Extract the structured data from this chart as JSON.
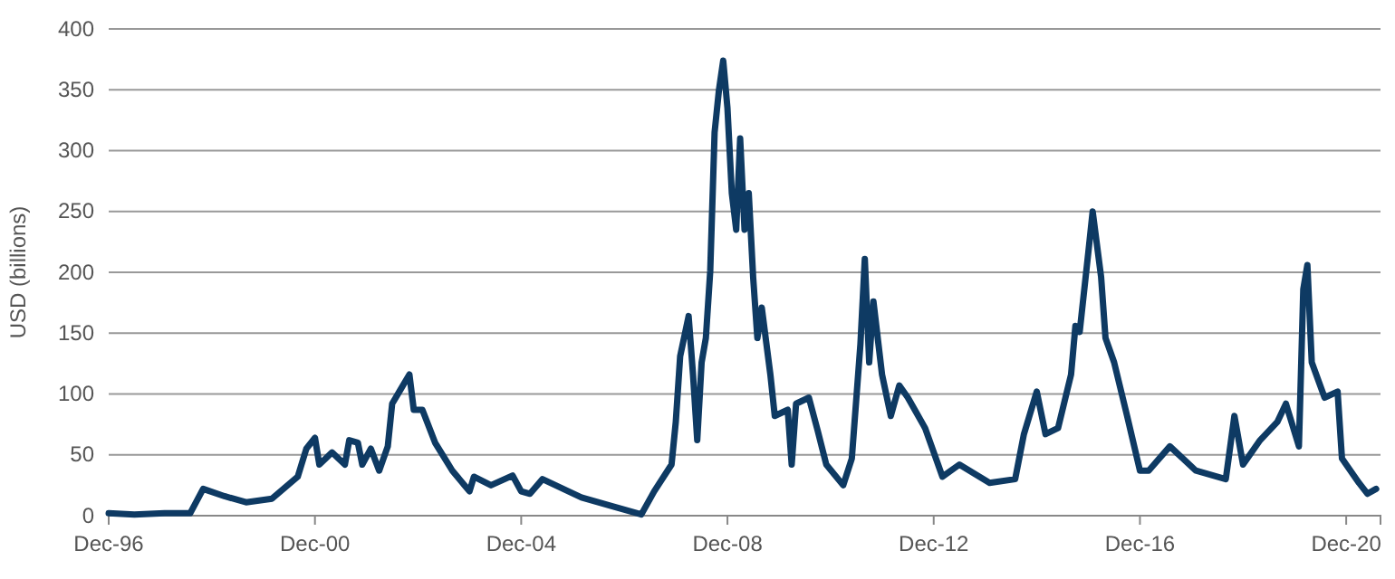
{
  "chart_data": {
    "type": "line",
    "ylabel": "USD (billions)",
    "xlim": [
      "1996-12",
      "2021-08"
    ],
    "ylim": [
      0,
      400
    ],
    "yticks": [
      0,
      50,
      100,
      150,
      200,
      250,
      300,
      350,
      400
    ],
    "xticks": [
      {
        "value": "1996-12",
        "label": "Dec-96"
      },
      {
        "value": "2000-12",
        "label": "Dec-00"
      },
      {
        "value": "2004-12",
        "label": "Dec-04"
      },
      {
        "value": "2008-12",
        "label": "Dec-08"
      },
      {
        "value": "2012-12",
        "label": "Dec-12"
      },
      {
        "value": "2016-12",
        "label": "Dec-16"
      },
      {
        "value": "2020-12",
        "label": "Dec-20"
      }
    ],
    "grid": "y",
    "marker": "none",
    "line_style": "solid",
    "x": [
      "1996-12",
      "1997-06",
      "1998-01",
      "1998-07",
      "1998-10",
      "1999-03",
      "1999-08",
      "2000-02",
      "2000-08",
      "2000-10",
      "2000-12",
      "2001-01",
      "2001-04",
      "2001-07",
      "2001-08",
      "2001-10",
      "2001-11",
      "2002-01",
      "2002-03",
      "2002-05",
      "2002-06",
      "2002-08",
      "2002-10",
      "2002-11",
      "2003-01",
      "2003-04",
      "2003-08",
      "2003-12",
      "2004-01",
      "2004-05",
      "2004-10",
      "2004-12",
      "2005-02",
      "2005-05",
      "2006-02",
      "2006-10",
      "2007-04",
      "2007-07",
      "2007-11",
      "2007-12",
      "2008-01",
      "2008-03",
      "2008-04",
      "2008-05",
      "2008-06",
      "2008-07",
      "2008-08",
      "2008-09",
      "2008-10",
      "2008-11",
      "2008-12",
      "2009-01",
      "2009-02",
      "2009-03",
      "2009-04",
      "2009-05",
      "2009-06",
      "2009-07",
      "2009-08",
      "2009-10",
      "2009-11",
      "2010-02",
      "2010-03",
      "2010-04",
      "2010-07",
      "2010-09",
      "2010-11",
      "2011-03",
      "2011-05",
      "2011-07",
      "2011-08",
      "2011-09",
      "2011-10",
      "2011-12",
      "2012-02",
      "2012-04",
      "2012-06",
      "2012-10",
      "2013-02",
      "2013-06",
      "2014-01",
      "2014-07",
      "2014-09",
      "2014-12",
      "2015-02",
      "2015-05",
      "2015-08",
      "2015-09",
      "2015-10",
      "2015-12",
      "2016-01",
      "2016-03",
      "2016-04",
      "2016-06",
      "2016-09",
      "2016-12",
      "2017-02",
      "2017-07",
      "2018-01",
      "2018-08",
      "2018-10",
      "2018-12",
      "2019-04",
      "2019-08",
      "2019-10",
      "2020-01",
      "2020-02",
      "2020-03",
      "2020-04",
      "2020-07",
      "2020-10",
      "2020-11",
      "2021-03",
      "2021-05",
      "2021-07"
    ],
    "series": [
      {
        "color": "#0e3a63",
        "values": [
          2,
          1,
          2,
          2,
          22,
          16,
          11,
          14,
          32,
          55,
          64,
          42,
          52,
          42,
          62,
          60,
          42,
          55,
          37,
          57,
          92,
          104,
          116,
          87,
          87,
          60,
          37,
          20,
          32,
          25,
          33,
          20,
          18,
          30,
          15,
          7,
          1,
          20,
          42,
          77,
          131,
          164,
          116,
          62,
          126,
          146,
          201,
          315,
          349,
          374,
          335,
          265,
          235,
          310,
          235,
          265,
          196,
          146,
          171,
          116,
          82,
          87,
          42,
          92,
          97,
          70,
          42,
          25,
          47,
          141,
          211,
          126,
          176,
          116,
          82,
          107,
          97,
          72,
          32,
          42,
          27,
          30,
          67,
          102,
          67,
          72,
          116,
          156,
          151,
          216,
          250,
          196,
          146,
          126,
          82,
          37,
          37,
          57,
          37,
          30,
          82,
          42,
          62,
          77,
          92,
          57,
          186,
          206,
          126,
          97,
          102,
          47,
          27,
          18,
          22
        ]
      }
    ]
  }
}
